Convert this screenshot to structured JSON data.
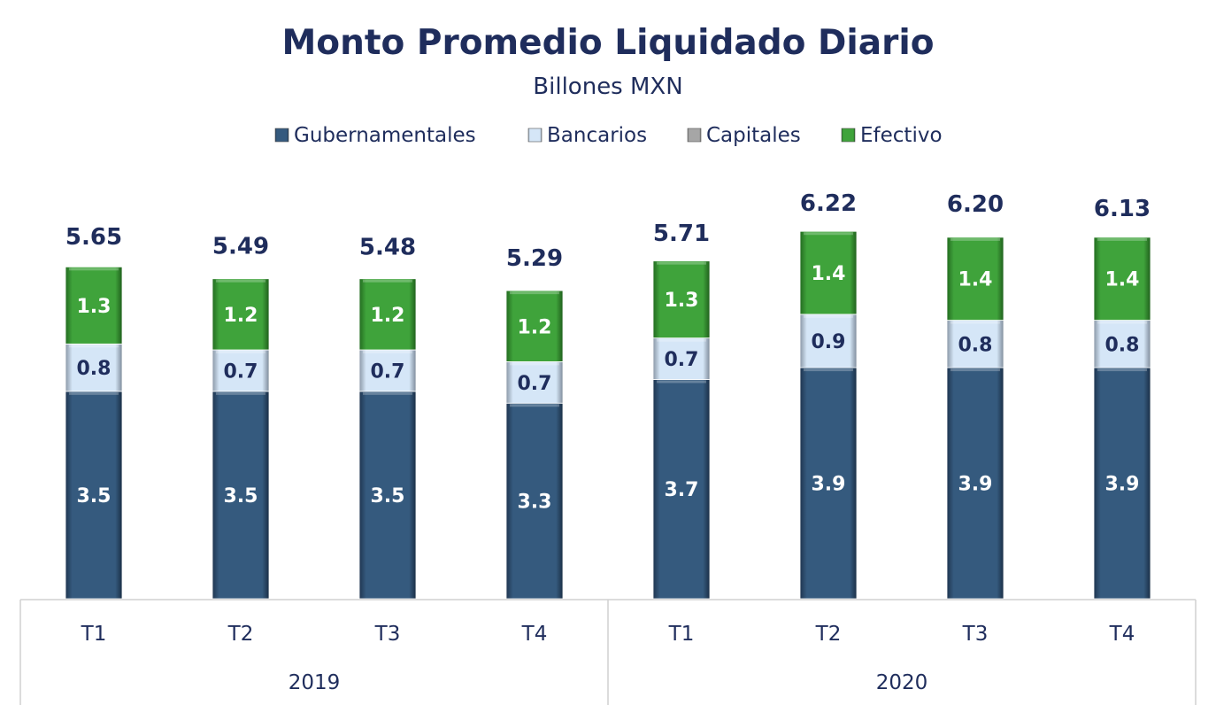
{
  "chart_data": {
    "type": "bar",
    "stacked": true,
    "title": "Monto Promedio Liquidado Diario",
    "subtitle": "Billones MXN",
    "categories": [
      "T1",
      "T2",
      "T3",
      "T4",
      "T1",
      "T2",
      "T3",
      "T4"
    ],
    "groups": [
      {
        "label": "2019",
        "categories": [
          0,
          1,
          2,
          3
        ]
      },
      {
        "label": "2020",
        "categories": [
          4,
          5,
          6,
          7
        ]
      }
    ],
    "series": [
      {
        "name": "Gubernamentales",
        "color": "#355a7e",
        "label_color": "#ffffff",
        "values": [
          3.5,
          3.5,
          3.5,
          3.3,
          3.7,
          3.9,
          3.9,
          3.9
        ],
        "labels": [
          "3.5",
          "3.5",
          "3.5",
          "3.3",
          "3.7",
          "3.9",
          "3.9",
          "3.9"
        ]
      },
      {
        "name": "Bancarios",
        "color": "#d5e6f7",
        "label_color": "#1f2d5c",
        "values": [
          0.8,
          0.7,
          0.7,
          0.7,
          0.7,
          0.9,
          0.8,
          0.8
        ],
        "labels": [
          "0.8",
          "0.7",
          "0.7",
          "0.7",
          "0.7",
          "0.9",
          "0.8",
          "0.8"
        ]
      },
      {
        "name": "Capitales",
        "color": "#a6a6a6",
        "label_color": "#1f2d5c",
        "values": [
          0.0,
          0.0,
          0.0,
          0.0,
          0.0,
          0.0,
          0.0,
          0.0
        ],
        "labels": [
          "",
          "",
          "",
          "",
          "",
          "",
          "",
          ""
        ]
      },
      {
        "name": "Efectivo",
        "color": "#3fa33b",
        "label_color": "#ffffff",
        "values": [
          1.3,
          1.2,
          1.2,
          1.2,
          1.3,
          1.4,
          1.4,
          1.4
        ],
        "labels": [
          "1.3",
          "1.2",
          "1.2",
          "1.2",
          "1.3",
          "1.4",
          "1.4",
          "1.4"
        ]
      }
    ],
    "totals": [
      5.65,
      5.49,
      5.48,
      5.29,
      5.71,
      6.22,
      6.2,
      6.13
    ],
    "total_labels": [
      "5.65",
      "5.49",
      "5.48",
      "5.29",
      "5.71",
      "6.22",
      "6.20",
      "6.13"
    ],
    "ylim": [
      0,
      6.5
    ],
    "grid": false,
    "legend_position": "top-center"
  }
}
